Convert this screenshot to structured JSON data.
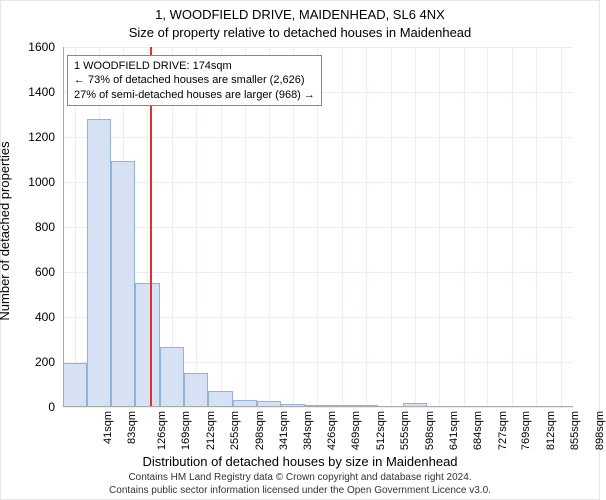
{
  "title": "1, WOODFIELD DRIVE, MAIDENHEAD, SL6 4NX",
  "subtitle": "Size of property relative to detached houses in Maidenhead",
  "xlabel": "Distribution of detached houses by size in Maidenhead",
  "ylabel": "Number of detached properties",
  "footer_line1": "Contains HM Land Registry data © Crown copyright and database right 2024.",
  "footer_line2": "Contains public sector information licensed under the Open Government Licence v3.0.",
  "chart": {
    "type": "histogram",
    "bar_fill": "#d6e1f4",
    "bar_stroke": "#94b0dc",
    "grid_color": "#ececf6",
    "marker_color": "#e03030",
    "marker_x": 174,
    "x_min": 20,
    "x_max": 920,
    "y_min": 0,
    "y_max": 1600,
    "y_ticks": [
      0,
      200,
      400,
      600,
      800,
      1000,
      1200,
      1400,
      1600
    ],
    "x_tick_labels": [
      "41sqm",
      "83sqm",
      "126sqm",
      "169sqm",
      "212sqm",
      "255sqm",
      "298sqm",
      "341sqm",
      "384sqm",
      "426sqm",
      "469sqm",
      "512sqm",
      "555sqm",
      "598sqm",
      "641sqm",
      "684sqm",
      "727sqm",
      "769sqm",
      "812sqm",
      "855sqm",
      "898sqm"
    ],
    "x_tick_values": [
      41,
      83,
      126,
      169,
      212,
      255,
      298,
      341,
      384,
      426,
      469,
      512,
      555,
      598,
      641,
      684,
      727,
      769,
      812,
      855,
      898
    ],
    "bars": [
      {
        "x": 41,
        "v": 195
      },
      {
        "x": 83,
        "v": 1280
      },
      {
        "x": 126,
        "v": 1095
      },
      {
        "x": 169,
        "v": 550
      },
      {
        "x": 212,
        "v": 265
      },
      {
        "x": 255,
        "v": 150
      },
      {
        "x": 298,
        "v": 70
      },
      {
        "x": 341,
        "v": 30
      },
      {
        "x": 384,
        "v": 25
      },
      {
        "x": 426,
        "v": 15
      },
      {
        "x": 469,
        "v": 10
      },
      {
        "x": 512,
        "v": 8
      },
      {
        "x": 555,
        "v": 8
      },
      {
        "x": 598,
        "v": 0
      },
      {
        "x": 641,
        "v": 18
      },
      {
        "x": 684,
        "v": 0
      },
      {
        "x": 727,
        "v": 0
      },
      {
        "x": 769,
        "v": 0
      },
      {
        "x": 812,
        "v": 0
      },
      {
        "x": 855,
        "v": 0
      },
      {
        "x": 898,
        "v": 0
      }
    ],
    "bar_width_units": 43
  },
  "annot": {
    "line1": "1 WOODFIELD DRIVE: 174sqm",
    "line2": "← 73% of detached houses are smaller (2,626)",
    "line3": "27% of semi-detached houses are larger (968) →"
  }
}
